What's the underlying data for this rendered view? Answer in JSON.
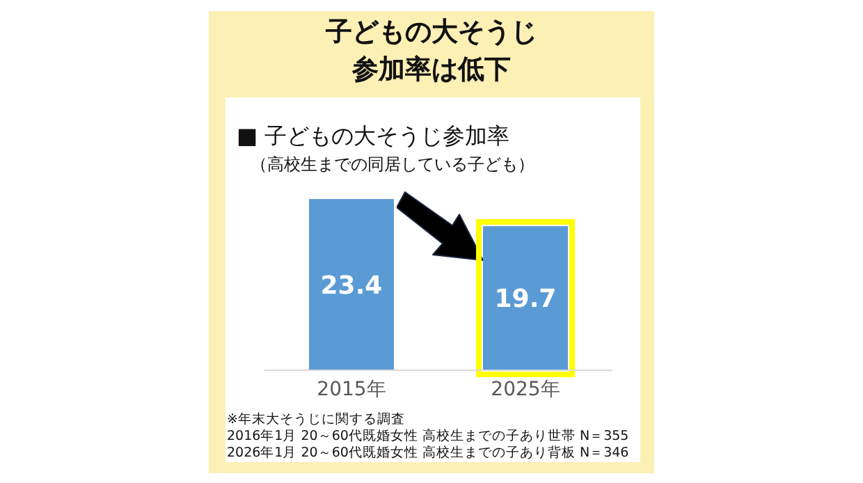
{
  "chart_data": {
    "type": "bar",
    "title": "子どもの大そうじ参加率は低下",
    "subtitle": "■ 子どもの大そうじ参加率",
    "categories": [
      "2015年",
      "2025年"
    ],
    "series": [
      {
        "color": "#5b9bd5",
        "values": [
          23.4,
          19.7
        ]
      }
    ],
    "data_labels": true,
    "grid": false,
    "legend": false,
    "annotations": [
      "（高校生までの同居している子ども）",
      "※年末大そうじに関する調査",
      "2016年1月 20～60代既婚女性 高校生までの子あり世帯 N＝355",
      "2026年1月 20～60代既婚女性 高校生までの子あり背板 N＝346"
    ]
  }
}
